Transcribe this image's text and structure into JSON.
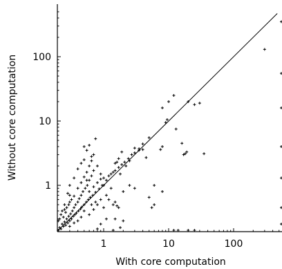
{
  "chart_data": {
    "type": "scatter",
    "title": "",
    "xlabel": "With core computation",
    "ylabel": "Without core computation",
    "xscale": "log",
    "yscale": "log",
    "xlim": [
      0.18,
      600
    ],
    "ylim": [
      0.18,
      600
    ],
    "xticks": [
      {
        "value": 1,
        "label": "1"
      },
      {
        "value": 10,
        "label": "10"
      },
      {
        "value": 100,
        "label": "100"
      }
    ],
    "yticks": [
      {
        "value": 1,
        "label": "1"
      },
      {
        "value": 10,
        "label": "10"
      },
      {
        "value": 100,
        "label": "100"
      }
    ],
    "marker": "+",
    "grid": false,
    "legend": "none",
    "reference_line": "y = x",
    "color": "#000000",
    "points": [
      [
        0.2,
        0.2
      ],
      [
        0.21,
        0.22
      ],
      [
        0.22,
        0.21
      ],
      [
        0.23,
        0.25
      ],
      [
        0.24,
        0.23
      ],
      [
        0.25,
        0.27
      ],
      [
        0.26,
        0.24
      ],
      [
        0.27,
        0.3
      ],
      [
        0.28,
        0.26
      ],
      [
        0.29,
        0.33
      ],
      [
        0.3,
        0.28
      ],
      [
        0.31,
        0.36
      ],
      [
        0.32,
        0.3
      ],
      [
        0.33,
        0.4
      ],
      [
        0.34,
        0.33
      ],
      [
        0.35,
        0.45
      ],
      [
        0.36,
        0.35
      ],
      [
        0.37,
        0.5
      ],
      [
        0.38,
        0.37
      ],
      [
        0.4,
        0.55
      ],
      [
        0.41,
        0.4
      ],
      [
        0.42,
        0.62
      ],
      [
        0.44,
        0.43
      ],
      [
        0.45,
        0.7
      ],
      [
        0.46,
        0.46
      ],
      [
        0.48,
        0.8
      ],
      [
        0.5,
        0.5
      ],
      [
        0.52,
        0.9
      ],
      [
        0.54,
        0.55
      ],
      [
        0.56,
        1.0
      ],
      [
        0.58,
        0.6
      ],
      [
        0.6,
        1.2
      ],
      [
        0.62,
        0.65
      ],
      [
        0.65,
        1.4
      ],
      [
        0.68,
        0.7
      ],
      [
        0.7,
        1.7
      ],
      [
        0.75,
        0.78
      ],
      [
        0.8,
        2.0
      ],
      [
        0.85,
        0.88
      ],
      [
        0.9,
        1.5
      ],
      [
        0.95,
        1.0
      ],
      [
        1.0,
        1.3
      ],
      [
        1.1,
        1.2
      ],
      [
        1.2,
        1.4
      ],
      [
        1.3,
        1.5
      ],
      [
        1.4,
        1.6
      ],
      [
        1.5,
        1.7
      ],
      [
        1.7,
        1.9
      ],
      [
        1.9,
        2.1
      ],
      [
        2.1,
        2.3
      ],
      [
        2.4,
        2.6
      ],
      [
        2.7,
        3.0
      ],
      [
        3.0,
        3.2
      ],
      [
        3.5,
        3.7
      ],
      [
        4.0,
        4.4
      ],
      [
        5.0,
        5.5
      ],
      [
        0.25,
        0.42
      ],
      [
        0.3,
        0.55
      ],
      [
        0.35,
        0.68
      ],
      [
        0.4,
        0.9
      ],
      [
        0.45,
        1.1
      ],
      [
        0.5,
        1.35
      ],
      [
        0.55,
        1.6
      ],
      [
        0.6,
        2.0
      ],
      [
        0.65,
        2.4
      ],
      [
        0.7,
        3.0
      ],
      [
        0.5,
        2.5
      ],
      [
        0.45,
        2.2
      ],
      [
        0.4,
        1.8
      ],
      [
        0.35,
        1.3
      ],
      [
        0.3,
        1.0
      ],
      [
        0.28,
        0.75
      ],
      [
        0.55,
        1.2
      ],
      [
        0.6,
        0.8
      ],
      [
        0.7,
        0.95
      ],
      [
        0.8,
        1.1
      ],
      [
        0.9,
        1.25
      ],
      [
        1.0,
        1.0
      ],
      [
        0.75,
        0.55
      ],
      [
        0.65,
        0.5
      ],
      [
        0.5,
        0.4
      ],
      [
        0.45,
        0.32
      ],
      [
        0.4,
        0.28
      ],
      [
        0.35,
        0.26
      ],
      [
        0.3,
        0.23
      ],
      [
        0.6,
        0.35
      ],
      [
        0.7,
        0.42
      ],
      [
        0.8,
        0.5
      ],
      [
        0.55,
        3.5
      ],
      [
        0.6,
        4.2
      ],
      [
        0.5,
        4.0
      ],
      [
        0.75,
        5.3
      ],
      [
        0.65,
        2.8
      ],
      [
        0.3,
        0.7
      ],
      [
        0.25,
        0.5
      ],
      [
        0.22,
        0.35
      ],
      [
        0.2,
        0.28
      ],
      [
        0.21,
        0.3
      ],
      [
        0.23,
        0.4
      ],
      [
        0.24,
        0.32
      ],
      [
        0.26,
        0.38
      ],
      [
        0.27,
        0.45
      ],
      [
        0.29,
        0.5
      ],
      [
        0.32,
        0.6
      ],
      [
        1.2,
        0.6
      ],
      [
        1.4,
        0.5
      ],
      [
        1.5,
        0.55
      ],
      [
        1.6,
        0.48
      ],
      [
        1.7,
        0.45
      ],
      [
        2.0,
        0.8
      ],
      [
        2.5,
        1.0
      ],
      [
        3.0,
        0.9
      ],
      [
        1.1,
        0.7
      ],
      [
        1.3,
        0.9
      ],
      [
        0.9,
        0.6
      ],
      [
        1.0,
        0.45
      ],
      [
        1.1,
        0.3
      ],
      [
        0.9,
        0.25
      ],
      [
        1.5,
        0.3
      ],
      [
        2.0,
        0.28
      ],
      [
        1.5,
        2.2
      ],
      [
        1.6,
        2.3
      ],
      [
        1.7,
        2.6
      ],
      [
        1.8,
        1.5
      ],
      [
        1.9,
        3.3
      ],
      [
        2.2,
        2.0
      ],
      [
        2.5,
        2.4
      ],
      [
        3.0,
        3.8
      ],
      [
        3.5,
        3.5
      ],
      [
        4.0,
        3.6
      ],
      [
        4.5,
        2.7
      ],
      [
        6.0,
        1.0
      ],
      [
        5.5,
        0.45
      ],
      [
        6.0,
        0.5
      ],
      [
        7.5,
        3.6
      ],
      [
        8.0,
        4.0
      ],
      [
        9.0,
        9.5
      ],
      [
        9.5,
        10.5
      ],
      [
        8.0,
        16.0
      ],
      [
        10.0,
        20.0
      ],
      [
        12.0,
        25.0
      ],
      [
        13.0,
        7.5
      ],
      [
        16.0,
        4.5
      ],
      [
        17.0,
        3.0
      ],
      [
        18.0,
        3.1
      ],
      [
        19.0,
        3.3
      ],
      [
        20.0,
        20.0
      ],
      [
        25.0,
        18.0
      ],
      [
        30.0,
        19.0
      ],
      [
        35.0,
        3.1
      ],
      [
        8.0,
        0.8
      ],
      [
        5.0,
        0.65
      ],
      [
        300.0,
        130.0
      ],
      [
        12.0,
        0.2
      ],
      [
        14.0,
        0.2
      ],
      [
        20.0,
        0.2
      ],
      [
        25.0,
        0.2
      ],
      [
        600.0,
        0.45
      ],
      [
        600.0,
        0.25
      ],
      [
        600.0,
        1.3
      ],
      [
        600.0,
        4.0
      ],
      [
        600.0,
        16.0
      ],
      [
        600.0,
        55.0
      ],
      [
        600.0,
        350.0
      ],
      [
        1.8,
        0.22
      ],
      [
        1.4,
        0.2
      ],
      [
        0.8,
        0.21
      ]
    ]
  }
}
